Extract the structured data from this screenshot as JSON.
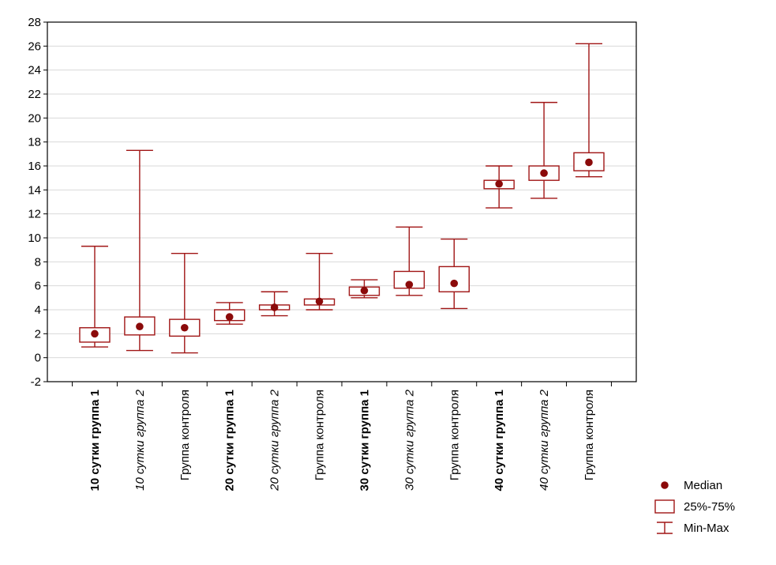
{
  "chart_data": {
    "type": "box",
    "title": "",
    "xlabel": "",
    "ylabel": "",
    "ylim": [
      -2,
      28
    ],
    "yticks": [
      -2,
      0,
      2,
      4,
      6,
      8,
      10,
      12,
      14,
      16,
      18,
      20,
      22,
      24,
      26,
      28
    ],
    "grid": true,
    "legend_position": "bottom-right",
    "colors": {
      "box": "#a01515",
      "median_marker": "#8b0a0a",
      "axis": "#000000",
      "grid": "#d9d9d9",
      "tick_label": "#000000"
    },
    "categories": [
      {
        "label": "10 сутки группа 1",
        "style": "bold"
      },
      {
        "label": "10 сутки группа 2",
        "style": "italic"
      },
      {
        "label": "Группа контроля",
        "style": "normal"
      },
      {
        "label": "20 сутки группа 1",
        "style": "bold"
      },
      {
        "label": "20 сутки группа 2",
        "style": "italic"
      },
      {
        "label": "Группа контроля",
        "style": "normal"
      },
      {
        "label": "30 сутки группа 1",
        "style": "bold"
      },
      {
        "label": "30 сутки группа 2",
        "style": "italic"
      },
      {
        "label": "Группа контроля",
        "style": "normal"
      },
      {
        "label": "40 сутки группа 1",
        "style": "bold"
      },
      {
        "label": "40 сутки группа 2",
        "style": "italic"
      },
      {
        "label": "Группа контроля",
        "style": "normal"
      }
    ],
    "boxes": [
      {
        "min": 0.9,
        "q1": 1.3,
        "median": 2.0,
        "q3": 2.5,
        "max": 9.3
      },
      {
        "min": 0.6,
        "q1": 1.9,
        "median": 2.6,
        "q3": 3.4,
        "max": 17.3
      },
      {
        "min": 0.4,
        "q1": 1.8,
        "median": 2.5,
        "q3": 3.2,
        "max": 8.7
      },
      {
        "min": 2.8,
        "q1": 3.1,
        "median": 3.4,
        "q3": 4.0,
        "max": 4.6
      },
      {
        "min": 3.5,
        "q1": 4.0,
        "median": 4.2,
        "q3": 4.4,
        "max": 5.5
      },
      {
        "min": 4.0,
        "q1": 4.4,
        "median": 4.7,
        "q3": 4.9,
        "max": 8.7
      },
      {
        "min": 5.0,
        "q1": 5.2,
        "median": 5.6,
        "q3": 5.9,
        "max": 6.5
      },
      {
        "min": 5.2,
        "q1": 5.8,
        "median": 6.1,
        "q3": 7.2,
        "max": 10.9
      },
      {
        "min": 4.1,
        "q1": 5.5,
        "median": 6.2,
        "q3": 7.6,
        "max": 9.9
      },
      {
        "min": 12.5,
        "q1": 14.1,
        "median": 14.5,
        "q3": 14.8,
        "max": 16.0
      },
      {
        "min": 13.3,
        "q1": 14.8,
        "median": 15.4,
        "q3": 16.0,
        "max": 21.3
      },
      {
        "min": 15.1,
        "q1": 15.6,
        "median": 16.3,
        "q3": 17.1,
        "max": 26.2
      }
    ],
    "legend": [
      {
        "symbol": "median-dot",
        "label": "Median"
      },
      {
        "symbol": "box",
        "label": "25%-75%"
      },
      {
        "symbol": "whisker",
        "label": "Min-Max"
      }
    ]
  }
}
